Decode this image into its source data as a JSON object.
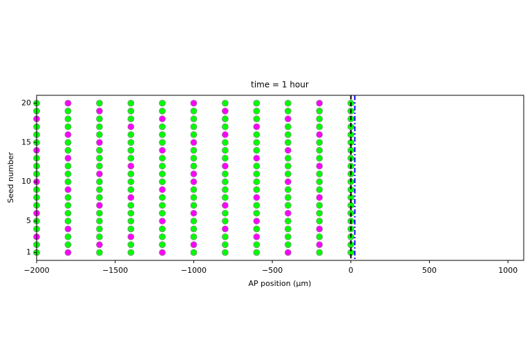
{
  "chart_data": {
    "type": "scatter",
    "title": "time = 1 hour",
    "x_label": "AP position (μm)",
    "y_label": "Seed number",
    "xlim": [
      -2000,
      1100
    ],
    "ylim": [
      0,
      21
    ],
    "xticks": [
      {
        "value": -2000,
        "label": "−2000"
      },
      {
        "value": -1500,
        "label": "−1500"
      },
      {
        "value": -1000,
        "label": "−1000"
      },
      {
        "value": -500,
        "label": "−500"
      },
      0,
      500,
      1000
    ],
    "yticks": [
      1,
      5,
      10,
      15,
      20
    ],
    "grid": false,
    "series": [
      {
        "color": "#00ff00",
        "x": [
          -2000,
          -1600,
          -1400,
          -1000,
          -800,
          -600,
          -200,
          0,
          -2000,
          -1800,
          -1400,
          -1200,
          -800,
          -600,
          -400,
          0,
          -1800,
          -1600,
          -1200,
          -1000,
          -800,
          -400,
          -200,
          0,
          -2000,
          -1600,
          -1400,
          -1200,
          -1000,
          -600,
          -400,
          0,
          -2000,
          -1800,
          -1600,
          -1400,
          -1000,
          -800,
          -400,
          -200,
          0,
          -1800,
          -1600,
          -1400,
          -1200,
          -800,
          -600,
          -200,
          0,
          -2000,
          -1800,
          -1400,
          -1200,
          -1000,
          -600,
          -400,
          -200,
          0,
          -2000,
          -1800,
          -1600,
          -1200,
          -1000,
          -800,
          -400,
          0,
          -2000,
          -1600,
          -1400,
          -1000,
          -800,
          -600,
          -400,
          -200,
          0,
          -1800,
          -1600,
          -1400,
          -1200,
          -800,
          -600,
          -200,
          0,
          -2000,
          -1800,
          -1400,
          -1200,
          -800,
          -600,
          -400,
          -200,
          0,
          -2000,
          -1800,
          -1600,
          -1200,
          -1000,
          -600,
          -400,
          0,
          -2000,
          -1600,
          -1400,
          -1200,
          -1000,
          -800,
          -400,
          -200,
          0,
          -1800,
          -1600,
          -1400,
          -1000,
          -800,
          -600,
          -200,
          0,
          -2000,
          -1800,
          -1400,
          -1200,
          -800,
          -600,
          -400,
          -200,
          0,
          -2000,
          -1600,
          -1400,
          -1200,
          -1000,
          -600,
          -400,
          0,
          -2000,
          -1800,
          -1600,
          -1200,
          -1000,
          -800,
          -400,
          -200,
          0,
          -1800,
          -1600,
          -1400,
          -1000,
          -800,
          -600,
          -200,
          0,
          -2000,
          -1800,
          -1400,
          -1200,
          -1000,
          -600,
          -400,
          -200,
          0,
          -2000,
          -1600,
          -1400,
          -1200,
          -800,
          -600,
          -400,
          0
        ],
        "y": [
          1,
          1,
          1,
          1,
          1,
          1,
          1,
          1,
          2,
          2,
          2,
          2,
          2,
          2,
          2,
          2,
          3,
          3,
          3,
          3,
          3,
          3,
          3,
          3,
          4,
          4,
          4,
          4,
          4,
          4,
          4,
          4,
          5,
          5,
          5,
          5,
          5,
          5,
          5,
          5,
          5,
          6,
          6,
          6,
          6,
          6,
          6,
          6,
          6,
          7,
          7,
          7,
          7,
          7,
          7,
          7,
          7,
          7,
          8,
          8,
          8,
          8,
          8,
          8,
          8,
          8,
          9,
          9,
          9,
          9,
          9,
          9,
          9,
          9,
          9,
          10,
          10,
          10,
          10,
          10,
          10,
          10,
          10,
          11,
          11,
          11,
          11,
          11,
          11,
          11,
          11,
          11,
          12,
          12,
          12,
          12,
          12,
          12,
          12,
          12,
          13,
          13,
          13,
          13,
          13,
          13,
          13,
          13,
          13,
          14,
          14,
          14,
          14,
          14,
          14,
          14,
          14,
          15,
          15,
          15,
          15,
          15,
          15,
          15,
          15,
          15,
          16,
          16,
          16,
          16,
          16,
          16,
          16,
          16,
          17,
          17,
          17,
          17,
          17,
          17,
          17,
          17,
          17,
          18,
          18,
          18,
          18,
          18,
          18,
          18,
          18,
          19,
          19,
          19,
          19,
          19,
          19,
          19,
          19,
          19,
          20,
          20,
          20,
          20,
          20,
          20,
          20,
          20
        ]
      },
      {
        "color": "#ff00ff",
        "x": [
          -1800,
          -1200,
          -400,
          -1600,
          -1000,
          -200,
          -2000,
          -1400,
          -600,
          -1800,
          -800,
          -200,
          -1200,
          -600,
          -2000,
          -1000,
          -400,
          -1600,
          -800,
          -1400,
          -600,
          -200,
          -1800,
          -1200,
          -2000,
          -1000,
          -400,
          -1600,
          -1000,
          -1400,
          -800,
          -200,
          -1800,
          -600,
          -2000,
          -1200,
          -400,
          -1600,
          -1000,
          -1800,
          -800,
          -200,
          -1400,
          -600,
          -2000,
          -1200,
          -400,
          -1600,
          -800,
          -1800,
          -1000,
          -200
        ],
        "y": [
          1,
          1,
          1,
          2,
          2,
          2,
          3,
          3,
          3,
          4,
          4,
          4,
          5,
          5,
          6,
          6,
          6,
          7,
          7,
          8,
          8,
          8,
          9,
          9,
          10,
          10,
          10,
          11,
          11,
          12,
          12,
          12,
          13,
          13,
          14,
          14,
          14,
          15,
          15,
          16,
          16,
          16,
          17,
          17,
          18,
          18,
          18,
          19,
          19,
          20,
          20,
          20
        ]
      }
    ],
    "vlines": [
      {
        "x": 0,
        "color": "#000000",
        "style": "dashed"
      },
      {
        "x": 25,
        "color": "#0000ff",
        "style": "dashdot"
      }
    ]
  }
}
